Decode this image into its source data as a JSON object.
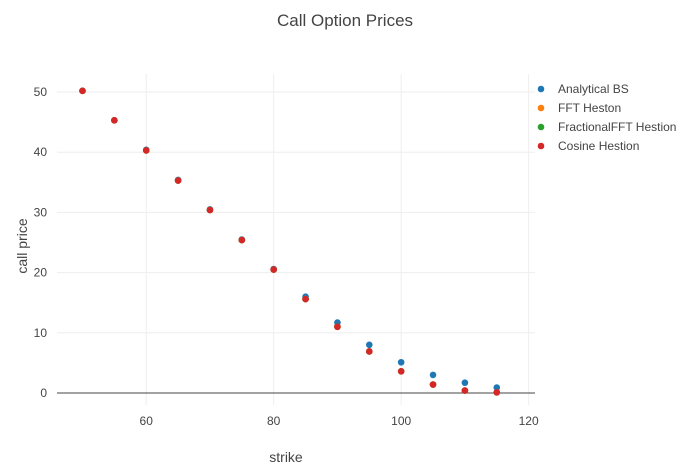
{
  "chart_data": {
    "type": "scatter",
    "title": "Call Option Prices",
    "xlabel": "strike",
    "ylabel": "call price",
    "xlim": [
      46,
      121
    ],
    "ylim": [
      -2,
      53
    ],
    "xticks": [
      60,
      80,
      100,
      120
    ],
    "yticks": [
      0,
      10,
      20,
      30,
      40,
      50
    ],
    "grid": true,
    "legend_position": "top-right",
    "x": [
      50,
      55,
      60,
      65,
      70,
      75,
      80,
      85,
      90,
      95,
      100,
      105,
      110,
      115
    ],
    "series": [
      {
        "name": "Analytical BS",
        "color": "#1f77b4",
        "values": [
          50.2,
          45.3,
          40.4,
          35.4,
          30.5,
          25.5,
          20.6,
          16.0,
          11.7,
          8.0,
          5.1,
          3.0,
          1.7,
          0.9
        ]
      },
      {
        "name": "FFT Heston",
        "color": "#ff7f0e",
        "values": [
          50.2,
          45.3,
          40.3,
          35.3,
          30.4,
          25.4,
          20.5,
          15.6,
          11.0,
          6.9,
          3.6,
          1.4,
          0.4,
          0.1
        ]
      },
      {
        "name": "FractionalFFT Hestion",
        "color": "#2ca02c",
        "values": [
          50.2,
          45.3,
          40.3,
          35.3,
          30.4,
          25.4,
          20.5,
          15.6,
          11.0,
          6.9,
          3.6,
          1.4,
          0.4,
          0.1
        ]
      },
      {
        "name": "Cosine Hestion",
        "color": "#d62728",
        "values": [
          50.2,
          45.3,
          40.3,
          35.3,
          30.4,
          25.4,
          20.5,
          15.6,
          11.0,
          6.9,
          3.6,
          1.4,
          0.4,
          0.1
        ]
      }
    ]
  }
}
